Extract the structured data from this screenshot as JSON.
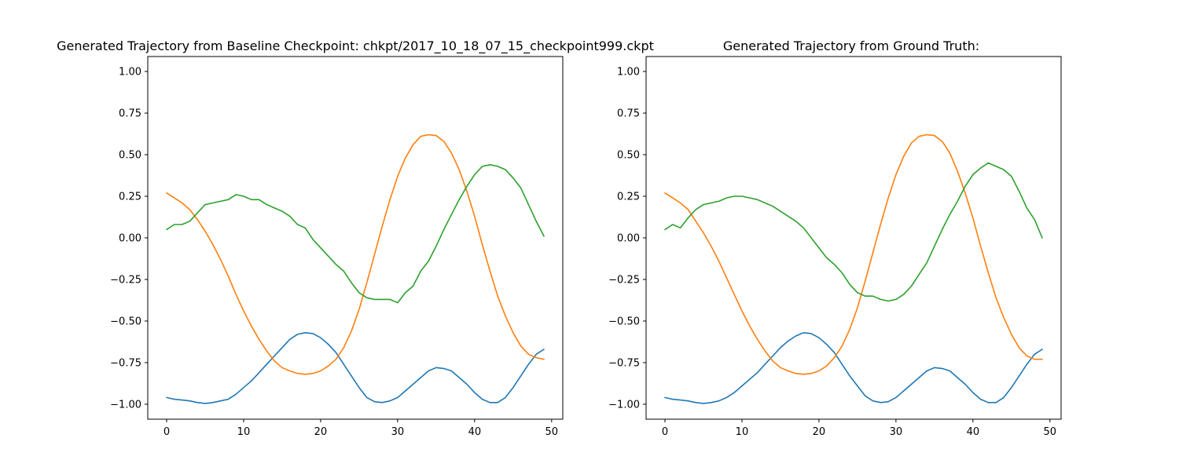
{
  "chart_data": [
    {
      "type": "line",
      "title": "Generated Trajectory from Baseline Checkpoint: chkpt/2017_10_18_07_15_checkpoint999.ckpt",
      "xlim": [
        -2.45,
        51.45
      ],
      "ylim": [
        -1.09,
        1.09
      ],
      "xticks": [
        0,
        10,
        20,
        30,
        40,
        50
      ],
      "yticks": [
        -1.0,
        -0.75,
        -0.5,
        -0.25,
        0.0,
        0.25,
        0.5,
        0.75,
        1.0
      ],
      "ytick_labels": [
        "−1.00",
        "−0.75",
        "−0.50",
        "−0.25",
        "0.00",
        "0.25",
        "0.50",
        "0.75",
        "1.00"
      ],
      "grid": false,
      "x": [
        0,
        1,
        2,
        3,
        4,
        5,
        6,
        7,
        8,
        9,
        10,
        11,
        12,
        13,
        14,
        15,
        16,
        17,
        18,
        19,
        20,
        21,
        22,
        23,
        24,
        25,
        26,
        27,
        28,
        29,
        30,
        31,
        32,
        33,
        34,
        35,
        36,
        37,
        38,
        39,
        40,
        41,
        42,
        43,
        44,
        45,
        46,
        47,
        48,
        49
      ],
      "series": [
        {
          "color": "#1f77b4",
          "values": [
            -0.96,
            -0.97,
            -0.975,
            -0.98,
            -0.99,
            -0.995,
            -0.99,
            -0.98,
            -0.97,
            -0.94,
            -0.9,
            -0.86,
            -0.81,
            -0.76,
            -0.71,
            -0.66,
            -0.61,
            -0.58,
            -0.57,
            -0.575,
            -0.6,
            -0.64,
            -0.69,
            -0.76,
            -0.83,
            -0.9,
            -0.96,
            -0.985,
            -0.99,
            -0.98,
            -0.96,
            -0.92,
            -0.88,
            -0.84,
            -0.8,
            -0.78,
            -0.785,
            -0.8,
            -0.84,
            -0.88,
            -0.93,
            -0.97,
            -0.99,
            -0.99,
            -0.96,
            -0.9,
            -0.83,
            -0.76,
            -0.7,
            -0.67
          ]
        },
        {
          "color": "#ff7f0e",
          "values": [
            0.27,
            0.24,
            0.21,
            0.17,
            0.11,
            0.04,
            -0.04,
            -0.13,
            -0.23,
            -0.34,
            -0.44,
            -0.53,
            -0.61,
            -0.68,
            -0.74,
            -0.78,
            -0.8,
            -0.815,
            -0.82,
            -0.815,
            -0.8,
            -0.77,
            -0.73,
            -0.66,
            -0.56,
            -0.43,
            -0.27,
            -0.1,
            0.07,
            0.23,
            0.37,
            0.48,
            0.56,
            0.61,
            0.62,
            0.615,
            0.58,
            0.51,
            0.41,
            0.28,
            0.13,
            -0.04,
            -0.2,
            -0.35,
            -0.47,
            -0.57,
            -0.65,
            -0.7,
            -0.72,
            -0.73
          ]
        },
        {
          "color": "#2ca02c",
          "values": [
            0.05,
            0.08,
            0.08,
            0.1,
            0.15,
            0.2,
            0.21,
            0.22,
            0.23,
            0.26,
            0.25,
            0.23,
            0.23,
            0.2,
            0.18,
            0.16,
            0.13,
            0.08,
            0.06,
            -0.01,
            -0.06,
            -0.11,
            -0.16,
            -0.2,
            -0.27,
            -0.33,
            -0.36,
            -0.37,
            -0.37,
            -0.37,
            -0.39,
            -0.33,
            -0.29,
            -0.2,
            -0.14,
            -0.05,
            0.05,
            0.14,
            0.23,
            0.31,
            0.38,
            0.43,
            0.44,
            0.43,
            0.41,
            0.36,
            0.3,
            0.2,
            0.1,
            0.01
          ]
        }
      ]
    },
    {
      "type": "line",
      "title": "Generated Trajectory from Ground Truth:",
      "xlim": [
        -2.45,
        51.45
      ],
      "ylim": [
        -1.09,
        1.09
      ],
      "xticks": [
        0,
        10,
        20,
        30,
        40,
        50
      ],
      "yticks": [
        -1.0,
        -0.75,
        -0.5,
        -0.25,
        0.0,
        0.25,
        0.5,
        0.75,
        1.0
      ],
      "ytick_labels": [
        "−1.00",
        "−0.75",
        "−0.50",
        "−0.25",
        "0.00",
        "0.25",
        "0.50",
        "0.75",
        "1.00"
      ],
      "grid": false,
      "x": [
        0,
        1,
        2,
        3,
        4,
        5,
        6,
        7,
        8,
        9,
        10,
        11,
        12,
        13,
        14,
        15,
        16,
        17,
        18,
        19,
        20,
        21,
        22,
        23,
        24,
        25,
        26,
        27,
        28,
        29,
        30,
        31,
        32,
        33,
        34,
        35,
        36,
        37,
        38,
        39,
        40,
        41,
        42,
        43,
        44,
        45,
        46,
        47,
        48,
        49
      ],
      "series": [
        {
          "color": "#1f77b4",
          "values": [
            -0.96,
            -0.97,
            -0.975,
            -0.98,
            -0.99,
            -0.995,
            -0.99,
            -0.98,
            -0.96,
            -0.93,
            -0.89,
            -0.85,
            -0.81,
            -0.76,
            -0.71,
            -0.66,
            -0.62,
            -0.59,
            -0.57,
            -0.575,
            -0.6,
            -0.64,
            -0.69,
            -0.76,
            -0.83,
            -0.89,
            -0.95,
            -0.98,
            -0.99,
            -0.985,
            -0.96,
            -0.92,
            -0.88,
            -0.84,
            -0.8,
            -0.78,
            -0.785,
            -0.8,
            -0.84,
            -0.88,
            -0.93,
            -0.97,
            -0.99,
            -0.99,
            -0.96,
            -0.9,
            -0.83,
            -0.76,
            -0.7,
            -0.67
          ]
        },
        {
          "color": "#ff7f0e",
          "values": [
            0.27,
            0.24,
            0.21,
            0.17,
            0.1,
            0.03,
            -0.05,
            -0.14,
            -0.24,
            -0.34,
            -0.44,
            -0.53,
            -0.61,
            -0.68,
            -0.74,
            -0.78,
            -0.8,
            -0.815,
            -0.82,
            -0.815,
            -0.8,
            -0.77,
            -0.72,
            -0.65,
            -0.55,
            -0.42,
            -0.26,
            -0.09,
            0.08,
            0.24,
            0.38,
            0.49,
            0.57,
            0.61,
            0.62,
            0.615,
            0.58,
            0.51,
            0.4,
            0.27,
            0.12,
            -0.05,
            -0.21,
            -0.36,
            -0.48,
            -0.58,
            -0.66,
            -0.71,
            -0.73,
            -0.73
          ]
        },
        {
          "color": "#2ca02c",
          "values": [
            0.05,
            0.08,
            0.06,
            0.12,
            0.17,
            0.2,
            0.21,
            0.22,
            0.24,
            0.25,
            0.25,
            0.24,
            0.23,
            0.21,
            0.19,
            0.16,
            0.13,
            0.1,
            0.06,
            0.0,
            -0.06,
            -0.12,
            -0.16,
            -0.21,
            -0.28,
            -0.33,
            -0.35,
            -0.35,
            -0.37,
            -0.38,
            -0.37,
            -0.34,
            -0.29,
            -0.22,
            -0.15,
            -0.05,
            0.05,
            0.14,
            0.22,
            0.31,
            0.38,
            0.42,
            0.45,
            0.43,
            0.41,
            0.37,
            0.28,
            0.18,
            0.11,
            0.0
          ]
        }
      ]
    }
  ]
}
